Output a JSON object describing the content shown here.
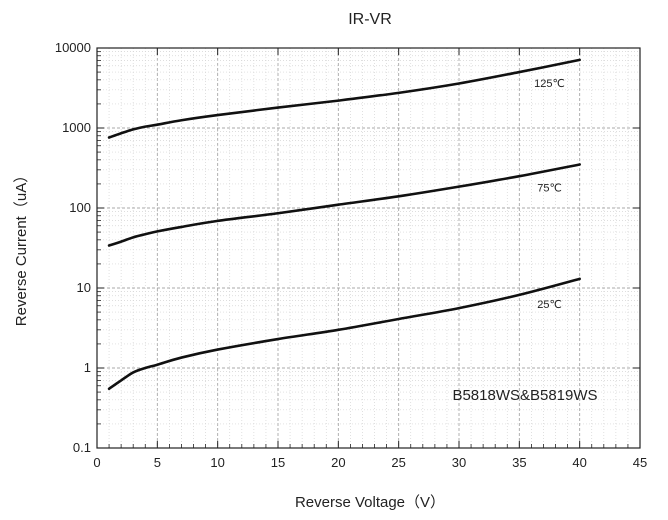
{
  "chart_data": {
    "type": "line",
    "title": "IR-VR",
    "xlabel": "Reverse Voltage（V）",
    "ylabel": "Reverse Current（uA）",
    "x_scale": "linear",
    "y_scale": "log",
    "xlim": [
      0,
      45
    ],
    "ylim": [
      0.1,
      10000
    ],
    "x_ticks": [
      "0",
      "5",
      "10",
      "15",
      "20",
      "25",
      "30",
      "35",
      "40",
      "45"
    ],
    "y_ticks": [
      "0.1",
      "1",
      "10",
      "100",
      "1000",
      "10000"
    ],
    "grid": "major and minor, dotted",
    "annotation": "B5818WS&B5819WS",
    "series": [
      {
        "name": "125℃",
        "x": [
          1,
          2,
          3,
          4,
          5,
          7,
          10,
          15,
          20,
          25,
          30,
          35,
          40
        ],
        "values": [
          760,
          860,
          960,
          1040,
          1100,
          1250,
          1450,
          1800,
          2200,
          2750,
          3600,
          5000,
          7100
        ]
      },
      {
        "name": "75℃",
        "x": [
          1,
          2,
          3,
          4,
          5,
          7,
          10,
          15,
          20,
          25,
          30,
          35,
          40
        ],
        "values": [
          34,
          38,
          43,
          47,
          51,
          58,
          69,
          86,
          110,
          140,
          185,
          250,
          350
        ]
      },
      {
        "name": "25℃",
        "x": [
          1,
          2,
          3,
          4,
          5,
          7,
          10,
          15,
          20,
          25,
          30,
          35,
          40
        ],
        "values": [
          0.55,
          0.7,
          0.88,
          1.0,
          1.1,
          1.35,
          1.7,
          2.3,
          3.0,
          4.1,
          5.6,
          8.2,
          13
        ]
      }
    ]
  }
}
